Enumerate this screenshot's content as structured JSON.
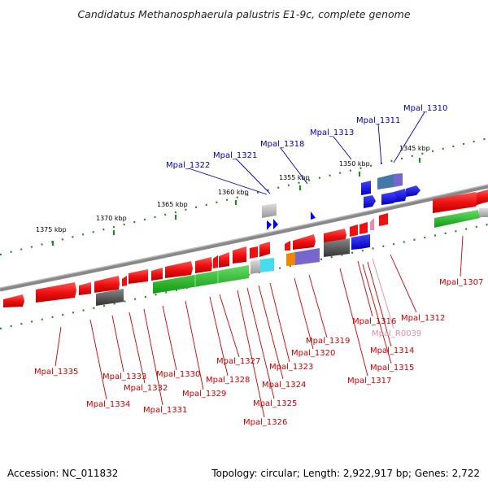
{
  "title": "Candidatus Methanosphaerula palustris E1-9c, complete genome",
  "footer": {
    "accession": "Accession: NC_011832",
    "summary": "Topology: circular; Length: 2,922,917 bp; Genes: 2,722"
  },
  "scale_labels": [
    "1375 kbp",
    "1370 kbp",
    "1365 kbp",
    "1360 kbp",
    "1355 kbp",
    "1350 kbp",
    "1345 kbp"
  ],
  "labels_top": [
    "Mpal_1322",
    "Mpal_1321",
    "Mpal_1318",
    "Mpal_1313",
    "Mpal_1311",
    "Mpal_1310"
  ],
  "labels_bottom": [
    "Mpal_1335",
    "Mpal_1334",
    "Mpal_1333",
    "Mpal_1332",
    "Mpal_1331",
    "Mpal_1330",
    "Mpal_1329",
    "Mpal_1328",
    "Mpal_1327",
    "Mpal_1326",
    "Mpal_1325",
    "Mpal_1324",
    "Mpal_1323",
    "Mpal_1320",
    "Mpal_1319",
    "Mpal_1317",
    "Mpal_1315",
    "Mpal_1314",
    "Mpal_R0039",
    "Mpal_1316",
    "Mpal_1312",
    "Mpal_1307"
  ],
  "colors": {
    "gene_red": "#ee1111",
    "gene_blue": "#0000ee",
    "gene_green": "#22aa22",
    "gene_gray": "#555555",
    "gene_purple": "#7766cc",
    "gene_cyan": "#44ddee",
    "gene_orange": "#ee8800",
    "rna_pink": "#ee88aa",
    "ruler_green": "#228822",
    "backbone": "#888888"
  }
}
